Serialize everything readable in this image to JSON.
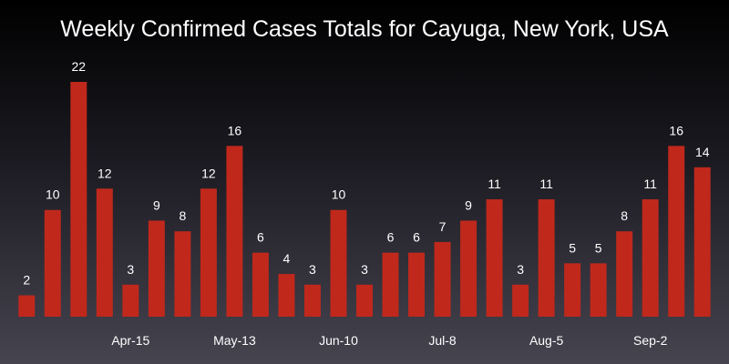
{
  "chart_data": {
    "type": "bar",
    "title": "Weekly Confirmed Cases Totals for Cayuga, New York, USA",
    "xlabel": "",
    "ylabel": "",
    "values": [
      2,
      10,
      22,
      12,
      3,
      9,
      8,
      12,
      16,
      6,
      4,
      3,
      10,
      3,
      6,
      6,
      7,
      9,
      11,
      3,
      11,
      5,
      5,
      8,
      11,
      16,
      14
    ],
    "x_tick_labels": [
      {
        "index": 4,
        "label": "Apr-15"
      },
      {
        "index": 8,
        "label": "May-13"
      },
      {
        "index": 12,
        "label": "Jun-10"
      },
      {
        "index": 16,
        "label": "Jul-8"
      },
      {
        "index": 20,
        "label": "Aug-5"
      },
      {
        "index": 24,
        "label": "Sep-2"
      }
    ],
    "ylim": [
      0,
      22
    ],
    "grid": false,
    "bar_color": "#c0281c",
    "background_top": "#000000",
    "background_bottom": "#46444f",
    "text_color": "#ffffff"
  }
}
